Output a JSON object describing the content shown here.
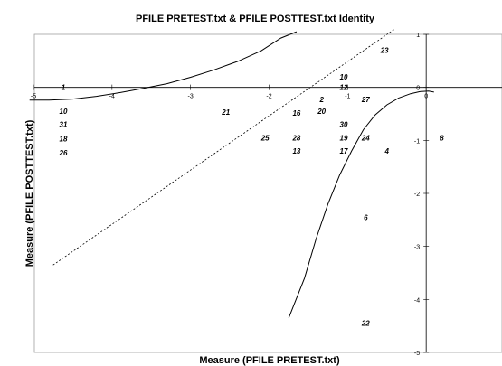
{
  "chart_data": {
    "type": "scatter",
    "title": "PFILE PRETEST.txt & PFILE POSTTEST.txt Identity",
    "xlabel": "Measure (PFILE PRETEST.txt)",
    "ylabel": "Measure (PFILE POSTTEST.txt)",
    "xlim": [
      -5,
      1
    ],
    "ylim": [
      -5,
      1
    ],
    "x_ticks": [
      "-5",
      "-4",
      "-3",
      "-2",
      "-1",
      "0"
    ],
    "y_ticks": [
      "1",
      "0",
      "-1",
      "-2",
      "-3",
      "-4",
      "-5"
    ],
    "grid": false,
    "legend": "none",
    "points": [
      {
        "label": "1",
        "x": -4.62,
        "y": 0.0
      },
      {
        "label": "10",
        "x": -4.62,
        "y": -0.45
      },
      {
        "label": "31",
        "x": -4.62,
        "y": -0.7
      },
      {
        "label": "18",
        "x": -4.62,
        "y": -0.97
      },
      {
        "label": "26",
        "x": -4.62,
        "y": -1.23
      },
      {
        "label": "21",
        "x": -2.55,
        "y": -0.47
      },
      {
        "label": "25",
        "x": -2.05,
        "y": -0.95
      },
      {
        "label": "16",
        "x": -1.65,
        "y": -0.48
      },
      {
        "label": "28",
        "x": -1.65,
        "y": -0.95
      },
      {
        "label": "13",
        "x": -1.65,
        "y": -1.2
      },
      {
        "label": "2",
        "x": -1.33,
        "y": -0.23
      },
      {
        "label": "20",
        "x": -1.33,
        "y": -0.45
      },
      {
        "label": "10",
        "x": -1.05,
        "y": 0.2
      },
      {
        "label": "12",
        "x": -1.05,
        "y": 0.0
      },
      {
        "label": "30",
        "x": -1.05,
        "y": -0.7
      },
      {
        "label": "19",
        "x": -1.05,
        "y": -0.95
      },
      {
        "label": "17",
        "x": -1.05,
        "y": -1.2
      },
      {
        "label": "23",
        "x": -0.53,
        "y": 0.7
      },
      {
        "label": "27",
        "x": -0.77,
        "y": -0.23
      },
      {
        "label": "24",
        "x": -0.77,
        "y": -0.95
      },
      {
        "label": "4",
        "x": -0.5,
        "y": -1.2
      },
      {
        "label": "6",
        "x": -0.77,
        "y": -2.45
      },
      {
        "label": "22",
        "x": -0.77,
        "y": -4.45
      },
      {
        "label": "8",
        "x": 0.2,
        "y": -0.95
      }
    ],
    "identity_line": [
      [
        -4.75,
        -3.35
      ],
      [
        -0.4,
        1.1
      ]
    ],
    "curves": [
      [
        [
          -5.05,
          -0.24
        ],
        [
          -4.8,
          -0.24
        ],
        [
          -4.5,
          -0.22
        ],
        [
          -4.2,
          -0.17
        ],
        [
          -3.9,
          -0.1
        ],
        [
          -3.6,
          -0.02
        ],
        [
          -3.3,
          0.07
        ],
        [
          -3.0,
          0.19
        ],
        [
          -2.7,
          0.33
        ],
        [
          -2.4,
          0.49
        ],
        [
          -2.1,
          0.69
        ],
        [
          -1.85,
          0.93
        ],
        [
          -1.65,
          1.05
        ]
      ],
      [
        [
          0.1,
          -0.09
        ],
        [
          0.03,
          -0.07
        ],
        [
          -0.08,
          -0.08
        ],
        [
          -0.2,
          -0.12
        ],
        [
          -0.35,
          -0.2
        ],
        [
          -0.5,
          -0.33
        ],
        [
          -0.65,
          -0.52
        ],
        [
          -0.8,
          -0.8
        ],
        [
          -0.95,
          -1.2
        ],
        [
          -1.1,
          -1.65
        ],
        [
          -1.25,
          -2.2
        ],
        [
          -1.4,
          -2.85
        ],
        [
          -1.55,
          -3.6
        ],
        [
          -1.75,
          -4.35
        ]
      ]
    ]
  }
}
